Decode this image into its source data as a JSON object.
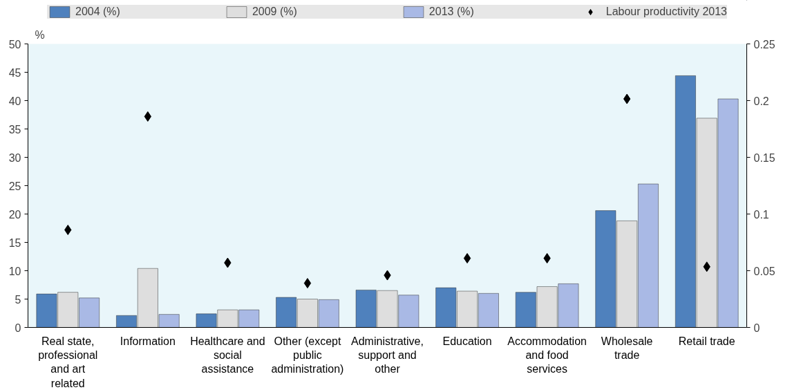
{
  "chart_data": {
    "type": "bar",
    "ylabel": "%",
    "categories": [
      "Real state, professional and art related",
      "Information",
      "Healthcare and social assistance",
      "Other (except public administration)",
      "Administrative, support and other",
      "Education",
      "Accommodation and food services",
      "Wholesale trade",
      "Retail trade"
    ],
    "series": [
      {
        "name": "2004 (%)",
        "color": "#4f81bd",
        "values": [
          5.9,
          2.1,
          2.4,
          5.3,
          6.6,
          7.0,
          6.2,
          20.6,
          44.4
        ]
      },
      {
        "name": "2009 (%)",
        "color": "#dedede",
        "values": [
          6.2,
          10.4,
          3.1,
          5.0,
          6.5,
          6.4,
          7.2,
          18.8,
          36.9
        ]
      },
      {
        "name": "2013 (%)",
        "color": "#a9b9e5",
        "values": [
          5.2,
          2.3,
          3.1,
          4.9,
          5.7,
          6.0,
          7.7,
          25.3,
          40.3
        ]
      },
      {
        "name": "Labour productivity 2013",
        "color": "#000000",
        "type": "scatter",
        "axis": "y2",
        "marker": "diamond",
        "values": [
          0.086,
          0.186,
          0.057,
          0.039,
          0.046,
          0.061,
          0.061,
          0.2015,
          0.0535
        ]
      }
    ],
    "ylim": [
      0,
      50
    ],
    "yticks": [
      0,
      5,
      10,
      15,
      20,
      25,
      30,
      35,
      40,
      45,
      50
    ],
    "y2lim": [
      0,
      0.25
    ],
    "y2ticks": [
      0,
      0.05,
      0.1,
      0.15,
      0.2,
      0.25
    ],
    "grid": false,
    "legend": "top"
  }
}
